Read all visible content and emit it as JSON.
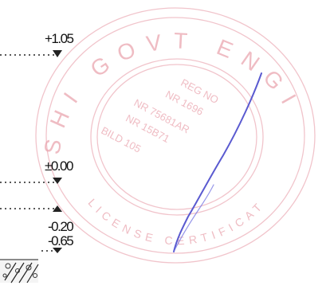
{
  "levels": [
    {
      "label": "+1.05"
    },
    {
      "label": "±0.00"
    },
    {
      "label": "-0.20"
    },
    {
      "label": "-0.65"
    }
  ],
  "stamp": {
    "ring_text": "SHI GOVT ENGINEER",
    "ring_text_lower": "LICENSE CERTIFICATE",
    "inner_lines": [
      "REG NO",
      "NR 1696",
      "NR 75681AR",
      "NR 15B71",
      "BILD 105"
    ],
    "color": "#e8a0aa"
  },
  "signature": {
    "color": "#5a5ad0"
  },
  "colors": {
    "ink": "#111111",
    "stamp": "#e8a0aa",
    "signature": "#5a5ad0"
  }
}
